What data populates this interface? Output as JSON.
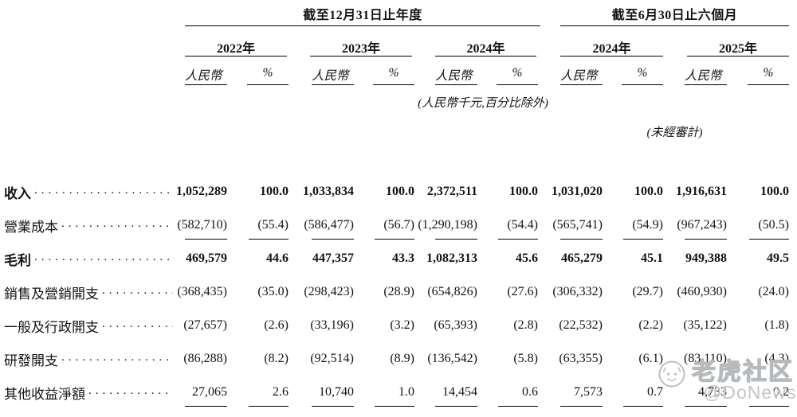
{
  "table": {
    "sections": [
      {
        "title": "截至12月31日止年度",
        "years": [
          {
            "label": "2022年"
          },
          {
            "label": "2023年"
          },
          {
            "label": "2024年"
          }
        ]
      },
      {
        "title": "截至6月30日止六個月",
        "years": [
          {
            "label": "2024年"
          },
          {
            "label": "2025年"
          }
        ]
      }
    ],
    "subheaders": {
      "currency": "人民幣",
      "percent": "%"
    },
    "notes": {
      "units": "(人民幣千元,百分比除外)",
      "unaudited": "(未經審計)"
    },
    "leader_dots": "..........................................................",
    "rows": [
      {
        "label": "收入",
        "bold": true,
        "underline": false,
        "values": [
          "1,052,289",
          "100.0",
          "1,033,834",
          "100.0",
          "2,372,511",
          "100.0",
          "1,031,020",
          "100.0",
          "1,916,631",
          "100.0"
        ]
      },
      {
        "label": "營業成本",
        "bold": false,
        "underline": true,
        "values": [
          "(582,710)",
          "(55.4)",
          "(586,477)",
          "(56.7)",
          "(1,290,198)",
          "(54.4)",
          "(565,741)",
          "(54.9)",
          "(967,243)",
          "(50.5)"
        ]
      },
      {
        "label": "毛利",
        "bold": true,
        "underline": false,
        "values": [
          "469,579",
          "44.6",
          "447,357",
          "43.3",
          "1,082,313",
          "45.6",
          "465,279",
          "45.1",
          "949,388",
          "49.5"
        ]
      },
      {
        "label": "銷售及營銷開支",
        "bold": false,
        "underline": false,
        "values": [
          "(368,435)",
          "(35.0)",
          "(298,423)",
          "(28.9)",
          "(654,826)",
          "(27.6)",
          "(306,332)",
          "(29.7)",
          "(460,930)",
          "(24.0)"
        ]
      },
      {
        "label": "一般及行政開支",
        "bold": false,
        "underline": false,
        "values": [
          "(27,657)",
          "(2.6)",
          "(33,196)",
          "(3.2)",
          "(65,393)",
          "(2.8)",
          "(22,532)",
          "(2.2)",
          "(35,122)",
          "(1.8)"
        ]
      },
      {
        "label": "研發開支",
        "bold": false,
        "underline": false,
        "values": [
          "(86,288)",
          "(8.2)",
          "(92,514)",
          "(8.9)",
          "(136,542)",
          "(5.8)",
          "(63,355)",
          "(6.1)",
          "(83,110)",
          "(4.3)"
        ]
      },
      {
        "label": "其他收益淨額",
        "bold": false,
        "underline": true,
        "values": [
          "27,065",
          "2.6",
          "10,740",
          "1.0",
          "14,454",
          "0.6",
          "7,573",
          "0.7",
          "4,733",
          "0.2"
        ]
      }
    ]
  },
  "watermark": {
    "community": "老虎社区",
    "source": "@DoNews",
    "color": "#b7babd"
  },
  "colors": {
    "text": "#141414",
    "rule": "#000000",
    "background": "#ffffff"
  }
}
